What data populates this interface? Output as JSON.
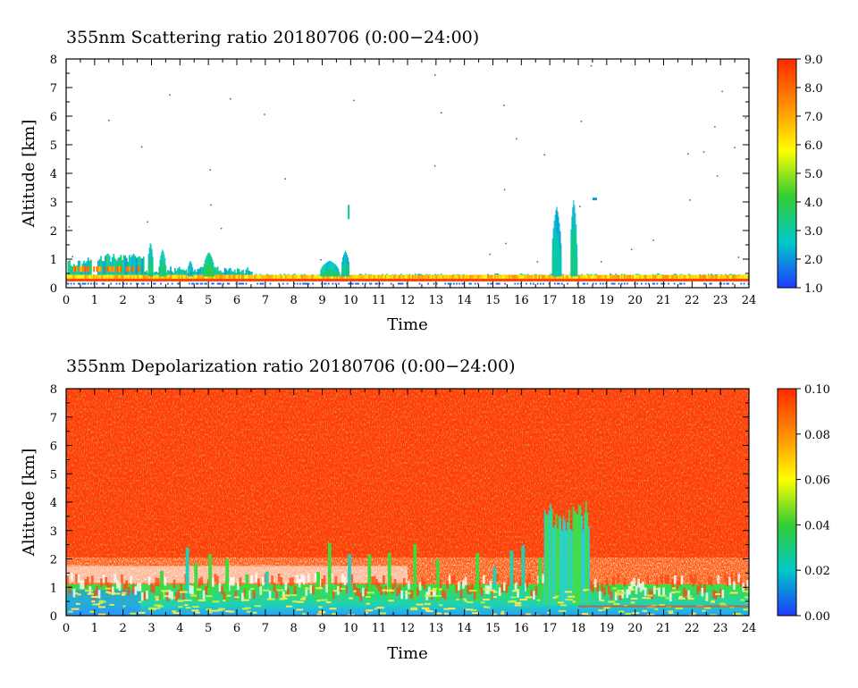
{
  "chart_data": [
    {
      "type": "heatmap",
      "title": "355nm Scattering ratio  20180706 (0:00−24:00)",
      "xlabel": "Time",
      "ylabel": "Altitude [km]",
      "xlim": [
        0,
        24
      ],
      "ylim": [
        0,
        8
      ],
      "x_ticks": [
        "0",
        "1",
        "2",
        "3",
        "4",
        "5",
        "6",
        "7",
        "8",
        "9",
        "10",
        "11",
        "12",
        "13",
        "14",
        "15",
        "16",
        "17",
        "18",
        "19",
        "20",
        "21",
        "22",
        "23",
        "24"
      ],
      "y_ticks": [
        "0",
        "1",
        "2",
        "3",
        "4",
        "5",
        "6",
        "7",
        "8"
      ],
      "colorbar": {
        "range": [
          1.0,
          9.0
        ],
        "tick_labels": [
          "1.0",
          "2.0",
          "3.0",
          "4.0",
          "5.0",
          "6.0",
          "7.0",
          "8.0",
          "9.0"
        ],
        "colors": [
          "#1e3cff",
          "#00c8c8",
          "#32cd32",
          "#ffff00",
          "#ff8c00",
          "#ff2a00"
        ]
      },
      "features": [
        {
          "x_start": 0.0,
          "x_end": 24.0,
          "alt_bottom": 0.15,
          "alt_top": 0.45,
          "value": 6.0
        },
        {
          "x_start": 1.2,
          "x_end": 2.6,
          "alt_bottom": 0.3,
          "alt_top": 1.2,
          "value": 3.5
        },
        {
          "x_start": 3.1,
          "x_end": 3.5,
          "alt_bottom": 0.3,
          "alt_top": 1.4,
          "value": 2.5
        },
        {
          "x_start": 4.8,
          "x_end": 5.2,
          "alt_bottom": 0.3,
          "alt_top": 1.2,
          "value": 3.0
        },
        {
          "x_start": 8.9,
          "x_end": 9.9,
          "alt_bottom": 0.3,
          "alt_top": 1.3,
          "value": 3.0
        },
        {
          "x_start": 17.1,
          "x_end": 17.4,
          "alt_bottom": 0.3,
          "alt_top": 2.9,
          "value": 2.0
        },
        {
          "x_start": 17.7,
          "x_end": 18.0,
          "alt_bottom": 0.3,
          "alt_top": 3.2,
          "value": 2.5
        }
      ]
    },
    {
      "type": "heatmap",
      "title": "355nm Depolarization ratio  20180706 (0:00−24:00)",
      "xlabel": "Time",
      "ylabel": "Altitude [km]",
      "xlim": [
        0,
        24
      ],
      "ylim": [
        0,
        8
      ],
      "x_ticks": [
        "0",
        "1",
        "2",
        "3",
        "4",
        "5",
        "6",
        "7",
        "8",
        "9",
        "10",
        "11",
        "12",
        "13",
        "14",
        "15",
        "16",
        "17",
        "18",
        "19",
        "20",
        "21",
        "22",
        "23",
        "24"
      ],
      "y_ticks": [
        "0",
        "1",
        "2",
        "3",
        "4",
        "5",
        "6",
        "7",
        "8"
      ],
      "colorbar": {
        "range": [
          0.0,
          0.1
        ],
        "tick_labels": [
          "0.00",
          "0.02",
          "0.04",
          "0.06",
          "0.08",
          "0.10"
        ],
        "colors": [
          "#1e3cff",
          "#00c8c8",
          "#32cd32",
          "#ffff00",
          "#ff8c00",
          "#ff2a00"
        ]
      },
      "features": [
        {
          "x_start": 0.0,
          "x_end": 24.0,
          "alt_bottom": 2.0,
          "alt_top": 8.0,
          "value": 0.09
        },
        {
          "x_start": 0.0,
          "x_end": 24.0,
          "alt_bottom": 1.0,
          "alt_top": 2.0,
          "value": null
        },
        {
          "x_start": 0.0,
          "x_end": 24.0,
          "alt_bottom": 0.0,
          "alt_top": 1.0,
          "value": 0.03
        },
        {
          "x_start": 16.8,
          "x_end": 18.3,
          "alt_bottom": 0.0,
          "alt_top": 4.2,
          "value": 0.025
        }
      ]
    }
  ]
}
